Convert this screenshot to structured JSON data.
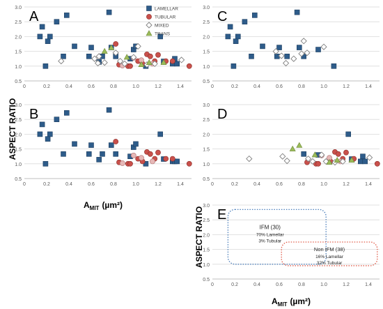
{
  "figure": {
    "y_axis_title": "ASPECT RATIO",
    "x_axis_title_main": "A",
    "x_axis_title_sub": "MIT",
    "x_axis_title_unit": "(µm²)",
    "y_axis_title_e": "ASPECT RATIO",
    "x_axis_title_e_main": "A",
    "x_axis_title_e_sub": "MIT",
    "x_axis_title_e_unit": "(µm²)"
  },
  "legend": {
    "placement": "top-right of panel A",
    "entries": [
      {
        "key": "lamellar",
        "label": "LAMELLAR",
        "marker": "square",
        "color": "#2E5C8A"
      },
      {
        "key": "tubular",
        "label": "TUBULAR",
        "marker": "circle",
        "color": "#C9504B"
      },
      {
        "key": "mixed",
        "label": "MIXED",
        "marker": "diamond",
        "color": "#ffffff"
      },
      {
        "key": "trans",
        "label": "TRANS",
        "marker": "triangle",
        "color": "#9BBB59"
      }
    ]
  },
  "colors": {
    "lamellar": "#2E5C8A",
    "tubular": "#C9504B",
    "tubular_light": "#E6B8B7",
    "mixed_fill": "#ffffff",
    "mixed_stroke": "#7F7F7F",
    "trans": "#9BBB59",
    "tick_text": "#595959",
    "ifm_box": "#4A7EBB",
    "non_ifm_box": "#E05A47"
  },
  "chart_data": [
    {
      "panel": "A",
      "type": "scatter",
      "xlim": [
        0,
        1.5
      ],
      "ylim": [
        0.5,
        3.0
      ],
      "xticks": [
        "0",
        "0.2",
        "0.4",
        "0.6",
        "0.8",
        "1.0",
        "1.2",
        "1.4"
      ],
      "yticks": [
        "0.5",
        "1.0",
        "1.5",
        "2.0",
        "2.5",
        "3.0"
      ],
      "grid": true,
      "series": [
        {
          "key": "lamellar",
          "points": [
            [
              0.14,
              2.0
            ],
            [
              0.16,
              2.33
            ],
            [
              0.19,
              1.0
            ],
            [
              0.21,
              1.84
            ],
            [
              0.23,
              2.0
            ],
            [
              0.29,
              2.5
            ],
            [
              0.35,
              1.33
            ],
            [
              0.38,
              2.72
            ],
            [
              0.45,
              1.67
            ],
            [
              0.58,
              1.33
            ],
            [
              0.6,
              1.63
            ],
            [
              0.67,
              1.14
            ],
            [
              0.7,
              1.33
            ],
            [
              0.76,
              2.82
            ],
            [
              0.78,
              1.63
            ],
            [
              0.82,
              1.33
            ],
            [
              0.95,
              1.25
            ],
            [
              0.98,
              1.56
            ],
            [
              1.0,
              1.67
            ],
            [
              1.09,
              1.0
            ],
            [
              1.22,
              2.0
            ],
            [
              1.25,
              1.16
            ],
            [
              1.33,
              1.08
            ],
            [
              1.35,
              1.25
            ],
            [
              1.37,
              1.08
            ]
          ]
        },
        {
          "key": "tubular",
          "points": [
            [
              0.82,
              1.75
            ],
            [
              0.85,
              1.05
            ],
            [
              0.93,
              1.0
            ],
            [
              0.95,
              1.0
            ],
            [
              1.02,
              1.17
            ],
            [
              1.06,
              1.08
            ],
            [
              1.1,
              1.4
            ],
            [
              1.13,
              1.33
            ],
            [
              1.17,
              1.17
            ],
            [
              1.2,
              1.38
            ],
            [
              1.27,
              1.17
            ],
            [
              1.33,
              1.17
            ],
            [
              1.48,
              1.0
            ]
          ]
        },
        {
          "key": "tubular_light",
          "points": [
            [
              0.88,
              1.02
            ],
            [
              0.98,
              1.28
            ],
            [
              1.05,
              1.2
            ],
            [
              1.15,
              1.08
            ]
          ]
        },
        {
          "key": "mixed",
          "points": [
            [
              0.33,
              1.17
            ],
            [
              0.63,
              1.25
            ],
            [
              0.66,
              1.1
            ],
            [
              0.67,
              1.33
            ],
            [
              0.72,
              1.12
            ],
            [
              0.82,
              1.45
            ],
            [
              0.86,
              1.17
            ],
            [
              0.9,
              1.08
            ],
            [
              0.98,
              1.3
            ],
            [
              1.02,
              1.67
            ],
            [
              1.1,
              1.05
            ],
            [
              1.17,
              1.08
            ],
            [
              1.41,
              1.21
            ]
          ]
        },
        {
          "key": "trans",
          "points": [
            [
              0.72,
              1.5
            ],
            [
              0.78,
              1.62
            ],
            [
              0.92,
              1.3
            ],
            [
              1.05,
              1.05
            ],
            [
              1.12,
              1.12
            ],
            [
              1.25,
              1.12
            ]
          ]
        }
      ]
    },
    {
      "panel": "B",
      "type": "scatter",
      "xlim": [
        0,
        1.5
      ],
      "ylim": [
        0.5,
        3.0
      ],
      "xticks": [
        "0",
        "0.2",
        "0.4",
        "0.6",
        "0.8",
        "1.0",
        "1.2",
        "1.4"
      ],
      "yticks": [
        "0.5",
        "1.0",
        "1.5",
        "2.0",
        "2.5",
        "3.0"
      ],
      "grid": true,
      "series": [
        {
          "key": "lamellar",
          "points": [
            [
              0.14,
              2.0
            ],
            [
              0.16,
              2.33
            ],
            [
              0.19,
              1.0
            ],
            [
              0.21,
              1.84
            ],
            [
              0.23,
              2.0
            ],
            [
              0.29,
              2.5
            ],
            [
              0.35,
              1.33
            ],
            [
              0.38,
              2.72
            ],
            [
              0.45,
              1.67
            ],
            [
              0.58,
              1.33
            ],
            [
              0.6,
              1.63
            ],
            [
              0.67,
              1.14
            ],
            [
              0.7,
              1.33
            ],
            [
              0.76,
              2.82
            ],
            [
              0.78,
              1.63
            ],
            [
              0.82,
              1.33
            ],
            [
              0.95,
              1.25
            ],
            [
              0.98,
              1.56
            ],
            [
              1.0,
              1.67
            ],
            [
              1.09,
              1.0
            ],
            [
              1.22,
              2.0
            ],
            [
              1.25,
              1.16
            ],
            [
              1.33,
              1.08
            ],
            [
              1.35,
              1.08
            ],
            [
              1.37,
              1.08
            ]
          ]
        },
        {
          "key": "tubular",
          "points": [
            [
              0.82,
              1.75
            ],
            [
              0.85,
              1.05
            ],
            [
              0.93,
              1.0
            ],
            [
              0.95,
              1.0
            ],
            [
              1.02,
              1.17
            ],
            [
              1.06,
              1.08
            ],
            [
              1.1,
              1.4
            ],
            [
              1.13,
              1.33
            ],
            [
              1.17,
              1.17
            ],
            [
              1.2,
              1.38
            ],
            [
              1.27,
              1.17
            ],
            [
              1.33,
              1.17
            ],
            [
              1.48,
              1.0
            ]
          ]
        },
        {
          "key": "tubular_light",
          "points": [
            [
              0.88,
              1.02
            ],
            [
              0.98,
              1.28
            ],
            [
              1.05,
              1.2
            ],
            [
              1.15,
              1.08
            ]
          ]
        }
      ]
    },
    {
      "panel": "C",
      "type": "scatter",
      "xlim": [
        0,
        1.5
      ],
      "ylim": [
        0.5,
        3.0
      ],
      "xticks": [
        "0",
        "0.2",
        "0.4",
        "0.6",
        "0.8",
        "1.0",
        "1.2",
        "1.4"
      ],
      "yticks": [
        "0.5",
        "1.0",
        "1.5",
        "2.0",
        "2.5",
        "3.0"
      ],
      "grid": true,
      "series": [
        {
          "key": "lamellar",
          "points": [
            [
              0.14,
              2.0
            ],
            [
              0.16,
              2.33
            ],
            [
              0.19,
              1.0
            ],
            [
              0.21,
              1.84
            ],
            [
              0.23,
              2.0
            ],
            [
              0.29,
              2.5
            ],
            [
              0.35,
              1.33
            ],
            [
              0.38,
              2.72
            ],
            [
              0.45,
              1.67
            ],
            [
              0.58,
              1.33
            ],
            [
              0.6,
              1.63
            ],
            [
              0.67,
              1.33
            ],
            [
              0.76,
              2.82
            ],
            [
              0.78,
              1.63
            ],
            [
              0.82,
              1.33
            ],
            [
              0.95,
              1.56
            ],
            [
              1.09,
              1.0
            ]
          ]
        },
        {
          "key": "mixed",
          "points": [
            [
              0.57,
              1.5
            ],
            [
              0.62,
              1.35
            ],
            [
              0.66,
              1.1
            ],
            [
              0.73,
              1.25
            ],
            [
              0.8,
              1.42
            ],
            [
              0.82,
              1.85
            ],
            [
              0.85,
              1.45
            ],
            [
              1.0,
              1.65
            ]
          ]
        }
      ]
    },
    {
      "panel": "D",
      "type": "scatter",
      "xlim": [
        0,
        1.5
      ],
      "ylim": [
        0.5,
        3.0
      ],
      "xticks": [
        "0",
        "0.2",
        "0.4",
        "0.6",
        "0.8",
        "1.0",
        "1.2",
        "1.4"
      ],
      "yticks": [
        "0.5",
        "1.0",
        "1.5",
        "2.0",
        "2.5",
        "3.0"
      ],
      "grid": true,
      "series": [
        {
          "key": "lamellar",
          "points": [
            [
              0.82,
              1.33
            ],
            [
              0.95,
              1.3
            ],
            [
              1.22,
              2.0
            ],
            [
              1.25,
              1.16
            ],
            [
              1.33,
              1.08
            ],
            [
              1.35,
              1.25
            ],
            [
              1.37,
              1.08
            ]
          ]
        },
        {
          "key": "tubular",
          "points": [
            [
              0.85,
              1.05
            ],
            [
              0.93,
              1.0
            ],
            [
              0.95,
              1.0
            ],
            [
              1.06,
              1.08
            ],
            [
              1.1,
              1.4
            ],
            [
              1.13,
              1.33
            ],
            [
              1.17,
              1.17
            ],
            [
              1.2,
              1.38
            ],
            [
              1.27,
              1.17
            ],
            [
              1.48,
              1.0
            ]
          ]
        },
        {
          "key": "tubular_light",
          "points": [
            [
              0.98,
              1.28
            ],
            [
              1.05,
              1.2
            ],
            [
              1.15,
              1.08
            ]
          ]
        },
        {
          "key": "mixed",
          "points": [
            [
              0.33,
              1.17
            ],
            [
              0.63,
              1.25
            ],
            [
              0.67,
              1.1
            ],
            [
              0.86,
              1.17
            ],
            [
              0.9,
              1.08
            ],
            [
              0.98,
              1.3
            ],
            [
              1.02,
              1.08
            ],
            [
              1.1,
              1.05
            ],
            [
              1.17,
              1.08
            ],
            [
              1.41,
              1.21
            ]
          ]
        },
        {
          "key": "trans",
          "points": [
            [
              0.72,
              1.5
            ],
            [
              0.78,
              1.62
            ],
            [
              0.92,
              1.3
            ],
            [
              1.05,
              1.05
            ],
            [
              1.12,
              1.12
            ],
            [
              1.25,
              1.12
            ]
          ]
        }
      ]
    },
    {
      "panel": "E",
      "type": "scatter",
      "xlim": [
        0,
        1.5
      ],
      "ylim": [
        0.5,
        3.0
      ],
      "xticks": [
        "0",
        "0.2",
        "0.4",
        "0.6",
        "0.8",
        "1.0",
        "1.2",
        "1.4"
      ],
      "yticks": [
        "0.5",
        "1.0",
        "1.5",
        "2.0",
        "2.5",
        "3.0"
      ],
      "grid": true,
      "regions": [
        {
          "key": "ifm",
          "x_range": [
            0.14,
            1.02
          ],
          "y_range": [
            1.0,
            2.85
          ],
          "title": "IFM (30)",
          "lines": [
            "70% Lamellar",
            "3% Tubular"
          ]
        },
        {
          "key": "non_ifm",
          "x_range": [
            0.62,
            1.48
          ],
          "y_range": [
            0.95,
            1.75
          ],
          "title": "Non IFM (38)",
          "lines": [
            "16% Lamellar",
            "32% Tubular"
          ]
        }
      ]
    }
  ]
}
